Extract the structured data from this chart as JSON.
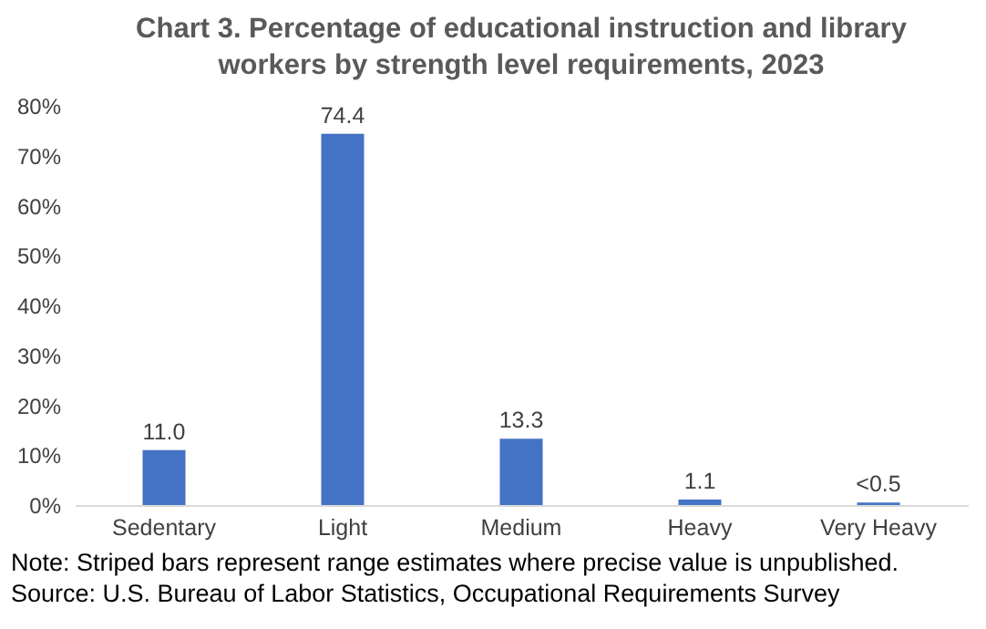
{
  "chart_data": {
    "type": "bar",
    "title": "Chart 3. Percentage of educational instruction and library workers by strength level requirements, 2023",
    "categories": [
      "Sedentary",
      "Light",
      "Medium",
      "Heavy",
      "Very Heavy"
    ],
    "values": [
      11.0,
      74.4,
      13.3,
      1.1,
      0.5
    ],
    "value_labels": [
      "11.0",
      "74.4",
      "13.3",
      "1.1",
      "<0.5"
    ],
    "color": "#4472c4",
    "ylim": [
      0,
      80
    ],
    "yticks": [
      {
        "value": 0,
        "label": "0%"
      },
      {
        "value": 10,
        "label": "10%"
      },
      {
        "value": 20,
        "label": "20%"
      },
      {
        "value": 30,
        "label": "30%"
      },
      {
        "value": 40,
        "label": "40%"
      },
      {
        "value": 50,
        "label": "50%"
      },
      {
        "value": 60,
        "label": "60%"
      },
      {
        "value": 70,
        "label": "70%"
      },
      {
        "value": 80,
        "label": "80%"
      }
    ],
    "grid": false,
    "annotations": [
      "Note: Striped bars represent range estimates where precise value is unpublished.",
      "Source: U.S. Bureau of Labor Statistics, Occupational Requirements Survey"
    ]
  }
}
